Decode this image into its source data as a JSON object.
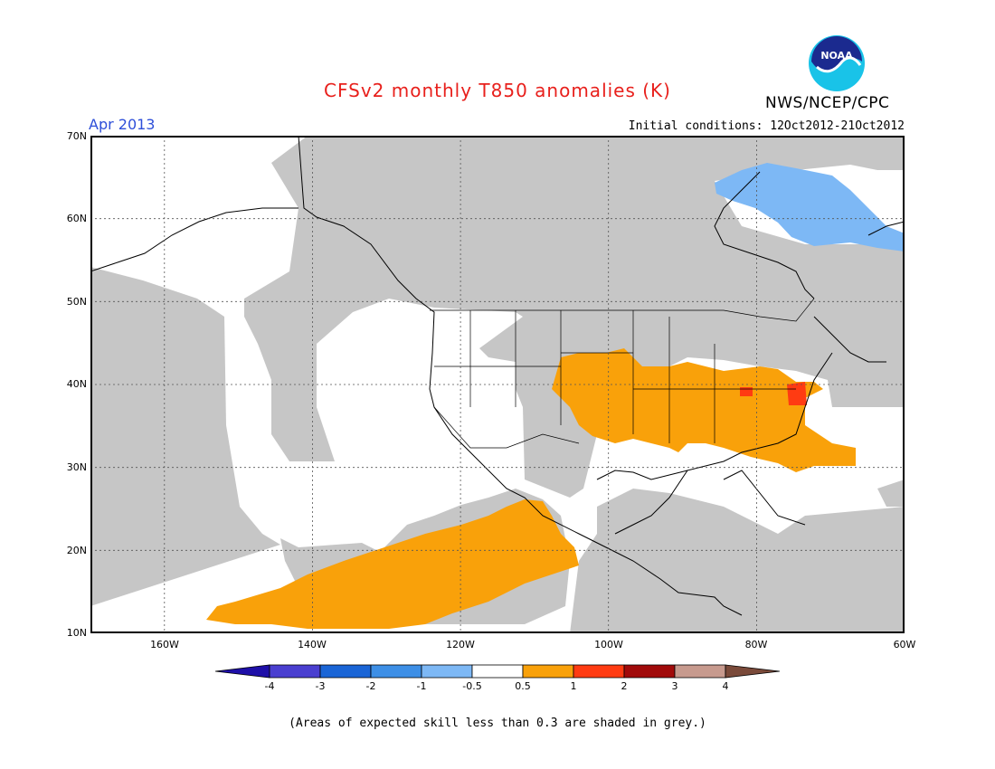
{
  "title": "CFSv2 monthly T850 anomalies (K)",
  "agency": "NWS/NCEP/CPC",
  "logo_text": "NOAA",
  "period": "Apr 2013",
  "initial_conditions": "Initial conditions: 12Oct2012-21Oct2012",
  "lat_labels": [
    "70N",
    "60N",
    "50N",
    "40N",
    "30N",
    "20N",
    "10N"
  ],
  "lon_labels": [
    "160W",
    "140W",
    "120W",
    "100W",
    "80W",
    "60W"
  ],
  "colorbar": {
    "labels": [
      "-4",
      "-3",
      "-2",
      "-1",
      "-0.5",
      "0.5",
      "1",
      "2",
      "3",
      "4"
    ],
    "colors": [
      "#1e0fa8",
      "#4a3fd0",
      "#1a65d6",
      "#3d8fe6",
      "#7db8f5",
      "#ffffff",
      "#f9a10a",
      "#ff3b12",
      "#a10a0a",
      "#c79a8e",
      "#7a4a3a"
    ]
  },
  "footnote": "(Areas of expected skill less than 0.3 are shaded in grey.)",
  "legend_colors": {
    "grey": "#c6c6c6",
    "orange": "#f9a10a",
    "red": "#ff3b12",
    "blue": "#7db8f5"
  }
}
